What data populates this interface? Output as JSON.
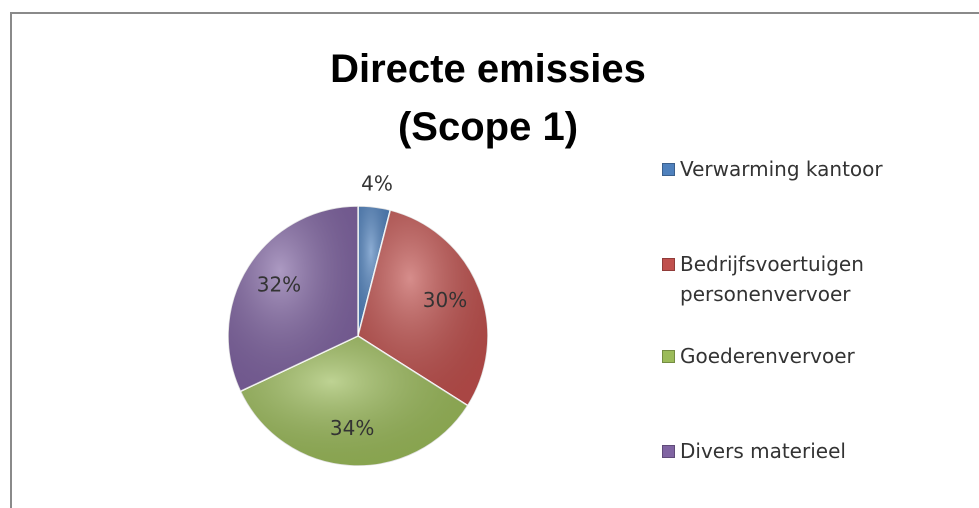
{
  "chart_data": {
    "type": "pie",
    "title": "Directe emissies (Scope 1)",
    "categories": [
      "Verwarming kantoor",
      "Bedrijfsvoertuigen personenvervoer",
      "Goederenvervoer",
      "Divers materieel"
    ],
    "values": [
      4,
      30,
      34,
      32
    ],
    "value_labels": [
      "4%",
      "30%",
      "34%",
      "32%"
    ],
    "colors": [
      "#4f81bd",
      "#c0504d",
      "#9bbb59",
      "#8064a2"
    ],
    "legend": "right"
  }
}
